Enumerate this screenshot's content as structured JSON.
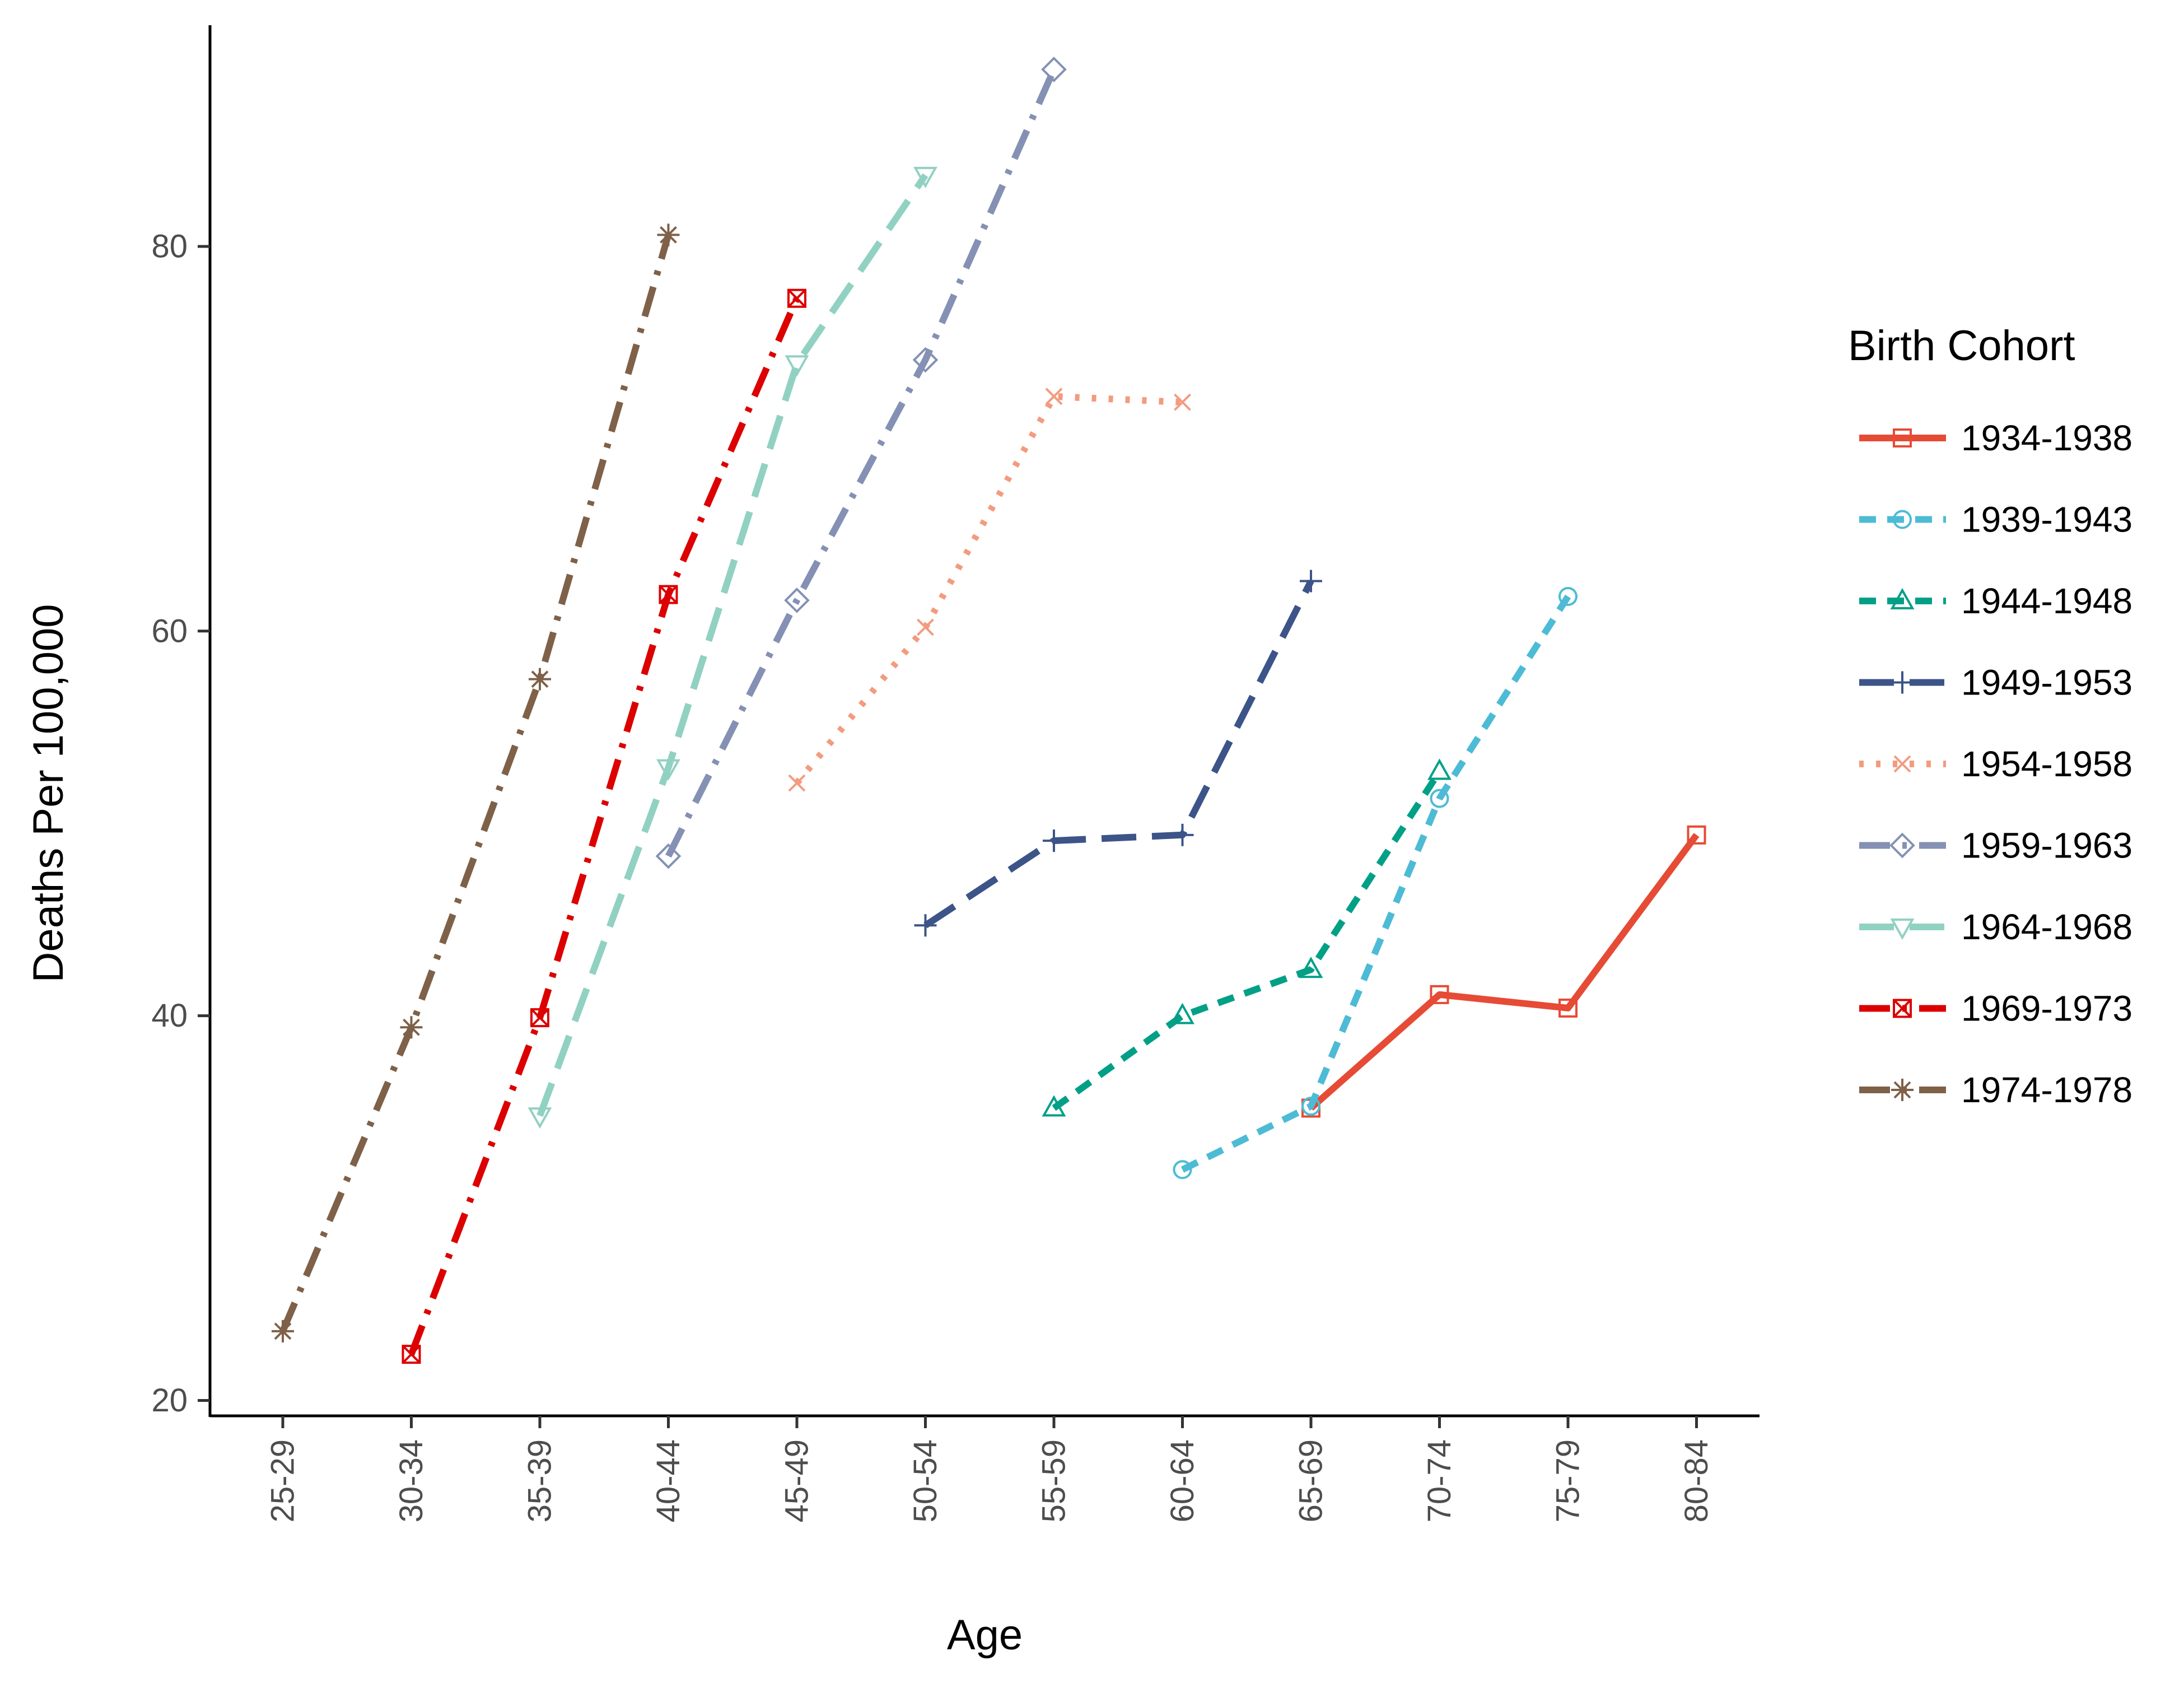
{
  "chart_data": {
    "type": "line",
    "title": "",
    "xlabel": "Age",
    "ylabel": "Deaths Per 100,000",
    "categories": [
      "25-29",
      "30-34",
      "35-39",
      "40-44",
      "45-49",
      "50-54",
      "55-59",
      "60-64",
      "65-69",
      "70-74",
      "75-79",
      "80-84"
    ],
    "ylim": [
      19.2,
      91.5
    ],
    "yticks": [
      20,
      40,
      60,
      80
    ],
    "grid": false,
    "legend": {
      "title": "Birth Cohort",
      "position": "right"
    },
    "series": [
      {
        "name": "1934-1938",
        "color": "#E64B35",
        "marker": "square",
        "linestyle": "solid",
        "values": [
          null,
          null,
          null,
          null,
          null,
          null,
          null,
          null,
          35.2,
          41.1,
          40.4,
          49.4
        ]
      },
      {
        "name": "1939-1943",
        "color": "#4DBBD5",
        "marker": "circle",
        "linestyle": "dashed",
        "values": [
          null,
          null,
          null,
          null,
          null,
          null,
          null,
          32.0,
          35.3,
          51.3,
          61.8,
          null
        ]
      },
      {
        "name": "1944-1948",
        "color": "#00A087",
        "marker": "triangle-up",
        "linestyle": "dashed",
        "values": [
          null,
          null,
          null,
          null,
          null,
          null,
          35.2,
          40.0,
          42.4,
          52.7,
          null,
          null
        ]
      },
      {
        "name": "1949-1953",
        "color": "#3C5488",
        "marker": "plus",
        "linestyle": "longdash",
        "values": [
          null,
          null,
          null,
          null,
          null,
          44.7,
          49.1,
          49.4,
          62.6,
          null,
          null,
          null
        ]
      },
      {
        "name": "1954-1958",
        "color": "#F39B7F",
        "marker": "cross",
        "linestyle": "dotted",
        "values": [
          null,
          null,
          null,
          null,
          52.1,
          60.2,
          72.2,
          71.9,
          null,
          null,
          null,
          null
        ]
      },
      {
        "name": "1959-1963",
        "color": "#8491B4",
        "marker": "diamond",
        "linestyle": "dashdot",
        "values": [
          null,
          null,
          null,
          48.3,
          61.6,
          74.1,
          89.2,
          null,
          null,
          null,
          null,
          null
        ]
      },
      {
        "name": "1964-1968",
        "color": "#91D1C2",
        "marker": "triangle-down",
        "linestyle": "longdash",
        "values": [
          null,
          null,
          34.8,
          52.9,
          73.9,
          83.7,
          null,
          null,
          null,
          null,
          null,
          null
        ]
      },
      {
        "name": "1969-1973",
        "color": "#DC0000",
        "marker": "square-x",
        "linestyle": "dashdot",
        "values": [
          null,
          22.4,
          39.9,
          61.9,
          77.3,
          null,
          null,
          null,
          null,
          null,
          null,
          null
        ]
      },
      {
        "name": "1974-1978",
        "color": "#7E6148",
        "marker": "asterisk",
        "linestyle": "dashdot",
        "values": [
          23.6,
          39.4,
          57.5,
          80.6,
          null,
          null,
          null,
          null,
          null,
          null,
          null,
          null
        ]
      }
    ]
  }
}
